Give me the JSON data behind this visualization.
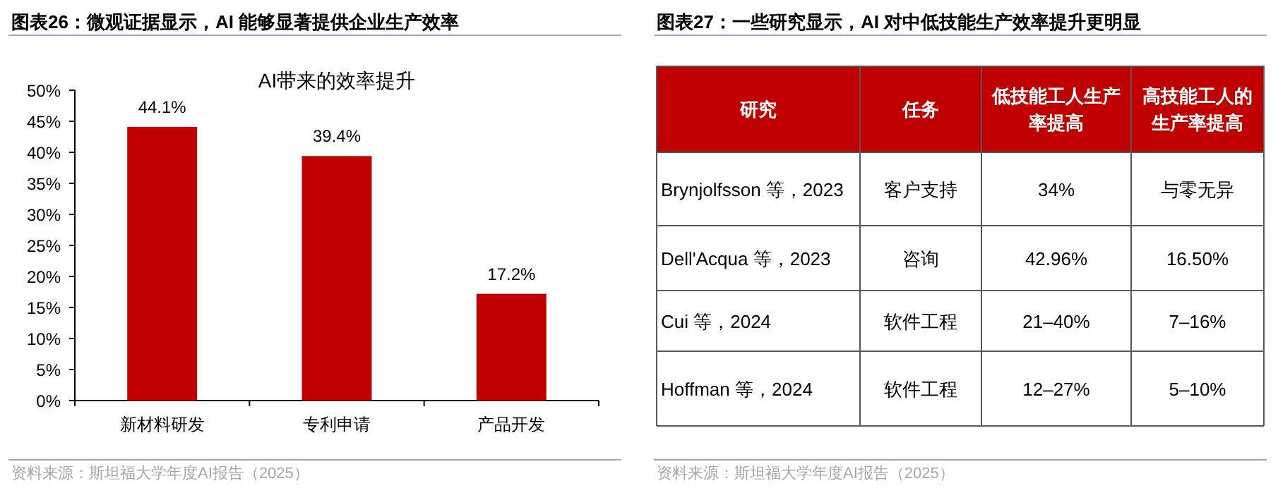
{
  "chart_data": [
    {
      "type": "bar",
      "title": "图表26：微观证据显示，AI 能够显著提供企业生产效率",
      "subtitle": "AI带来的效率提升",
      "categories": [
        "新材料研发",
        "专利申请",
        "产品开发"
      ],
      "values": [
        44.1,
        39.4,
        17.2
      ],
      "color": "#c00000",
      "value_labels": [
        "44.1%",
        "39.4%",
        "17.2%"
      ],
      "ylim": [
        0,
        50
      ],
      "yticks": [
        {
          "value": 0,
          "label": "0%"
        },
        {
          "value": 5,
          "label": "5%"
        },
        {
          "value": 10,
          "label": "10%"
        },
        {
          "value": 15,
          "label": "15%"
        },
        {
          "value": 20,
          "label": "20%"
        },
        {
          "value": 25,
          "label": "25%"
        },
        {
          "value": 30,
          "label": "30%"
        },
        {
          "value": 35,
          "label": "35%"
        },
        {
          "value": 40,
          "label": "40%"
        },
        {
          "value": 45,
          "label": "45%"
        },
        {
          "value": 50,
          "label": "50%"
        }
      ],
      "grid": false,
      "annotations": [
        "资料来源：斯坦福大学年度AI报告（2025）"
      ]
    },
    {
      "type": "other",
      "title": "图表27：一些研究显示，AI 对中低技能生产效率提升更明显",
      "categories": [
        "研究",
        "任务",
        "低技能工人生产率提高",
        "高技能工人的生产率提高"
      ],
      "y_categories": [
        "Brynjolfsson 等，2023",
        "Dell'Acqua 等，2023",
        "Cui 等，2024",
        "Hoffman 等，2024"
      ],
      "cell_labels": [
        [
          "客户支持",
          "34%",
          "与零无异"
        ],
        [
          "咨询",
          "42.96%",
          "16.50%"
        ],
        [
          "软件工程",
          "21–40%",
          "7–16%"
        ],
        [
          "软件工程",
          "12–27%",
          "5–10%"
        ]
      ],
      "color": "#c00000",
      "annotations": [
        "资料来源：斯坦福大学年度AI报告（2025）"
      ]
    }
  ]
}
